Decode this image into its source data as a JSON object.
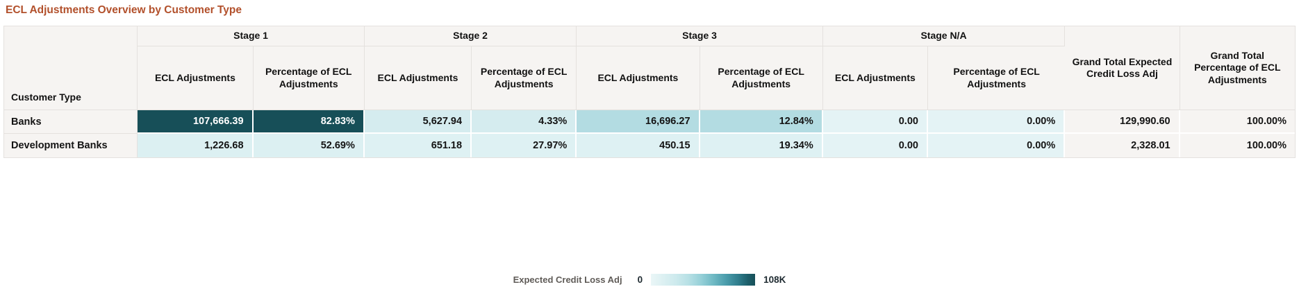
{
  "title": "ECL Adjustments Overview by Customer Type",
  "table": {
    "row_header_label": "Customer Type",
    "groups": {
      "s1": "Stage 1",
      "s2": "Stage 2",
      "s3": "Stage 3",
      "sna": "Stage N/A"
    },
    "sub": {
      "ecl": "ECL Adjustments",
      "pct": "Percentage of ECL Adjustments"
    },
    "grand": {
      "ecl": "Grand Total Expected Credit Loss Adj",
      "pct": "Grand Total Percentage of ECL Adjustments"
    },
    "rows": [
      {
        "label": "Banks",
        "cells": [
          {
            "value": "107,666.39",
            "style": "background-color:#174f58;color:#ffffff"
          },
          {
            "value": "82.83%",
            "style": "background-color:#174f58;color:#ffffff"
          },
          {
            "value": "5,627.94",
            "style": "background-color:#d5ecef"
          },
          {
            "value": "4.33%",
            "style": "background-color:#d5ecef"
          },
          {
            "value": "16,696.27",
            "style": "background-color:#b3dce2"
          },
          {
            "value": "12.84%",
            "style": "background-color:#b3dce2"
          },
          {
            "value": "0.00",
            "style": "background-color:#e4f3f5"
          },
          {
            "value": "0.00%",
            "style": "background-color:#e4f3f5"
          },
          {
            "value": "129,990.60",
            "style": "background-color:#f6f4f2"
          },
          {
            "value": "100.00%",
            "style": "background-color:#f6f4f2"
          }
        ]
      },
      {
        "label": "Development Banks",
        "cells": [
          {
            "value": "1,226.68",
            "style": "background-color:#dcf0f2"
          },
          {
            "value": "52.69%",
            "style": "background-color:#dcf0f2"
          },
          {
            "value": "651.18",
            "style": "background-color:#def1f3"
          },
          {
            "value": "27.97%",
            "style": "background-color:#def1f3"
          },
          {
            "value": "450.15",
            "style": "background-color:#def1f3"
          },
          {
            "value": "19.34%",
            "style": "background-color:#def1f3"
          },
          {
            "value": "0.00",
            "style": "background-color:#e4f3f5"
          },
          {
            "value": "0.00%",
            "style": "background-color:#e4f3f5"
          },
          {
            "value": "2,328.01",
            "style": "background-color:#f6f4f2"
          },
          {
            "value": "100.00%",
            "style": "background-color:#f6f4f2"
          }
        ]
      }
    ]
  },
  "legend": {
    "label": "Expected Credit Loss Adj",
    "min": "0",
    "max": "108K"
  },
  "colors": {
    "title_accent": "#b2502b",
    "header_bg": "#f6f4f2",
    "heat_min": "#eaf6f7",
    "heat_max": "#174f58"
  },
  "chart_data": {
    "type": "table",
    "title": "ECL Adjustments Overview by Customer Type",
    "column_groups": [
      "Stage 1",
      "Stage 2",
      "Stage 3",
      "Stage N/A",
      "Grand Total"
    ],
    "columns": [
      "Customer Type",
      "Stage 1 ECL Adjustments",
      "Stage 1 Percentage of ECL Adjustments",
      "Stage 2 ECL Adjustments",
      "Stage 2 Percentage of ECL Adjustments",
      "Stage 3 ECL Adjustments",
      "Stage 3 Percentage of ECL Adjustments",
      "Stage N/A ECL Adjustments",
      "Stage N/A Percentage of ECL Adjustments",
      "Grand Total Expected Credit Loss Adj",
      "Grand Total Percentage of ECL Adjustments"
    ],
    "rows": [
      [
        "Banks",
        107666.39,
        "82.83%",
        5627.94,
        "4.33%",
        16696.27,
        "12.84%",
        0.0,
        "0.00%",
        129990.6,
        "100.00%"
      ],
      [
        "Development Banks",
        1226.68,
        "52.69%",
        651.18,
        "27.97%",
        450.15,
        "19.34%",
        0.0,
        "0.00%",
        2328.01,
        "100.00%"
      ]
    ],
    "conditional_format": {
      "measure": "Expected Credit Loss Adj",
      "scale_min": 0,
      "scale_max": 108000,
      "scale_max_label": "108K",
      "color_low": "#eaf6f7",
      "color_high": "#174f58",
      "legend_position": "bottom-center"
    }
  }
}
